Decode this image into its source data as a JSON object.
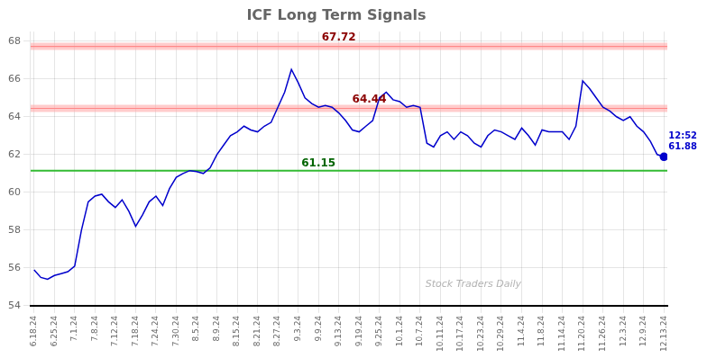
{
  "chart_data": {
    "type": "line",
    "title": "ICF Long Term Signals",
    "categories": [
      "6.18.24",
      null,
      null,
      "6.25.24",
      null,
      null,
      "7.1.24",
      null,
      null,
      "7.8.24",
      null,
      null,
      "7.12.24",
      null,
      null,
      "7.18.24",
      null,
      null,
      "7.24.24",
      null,
      null,
      "7.30.24",
      null,
      null,
      "8.5.24",
      null,
      null,
      "8.9.24",
      null,
      null,
      "8.15.24",
      null,
      null,
      "8.21.24",
      null,
      null,
      "8.27.24",
      null,
      null,
      "9.3.24",
      null,
      null,
      "9.9.24",
      null,
      null,
      "9.13.24",
      null,
      null,
      "9.19.24",
      null,
      null,
      "9.25.24",
      null,
      null,
      "10.1.24",
      null,
      null,
      "10.7.24",
      null,
      null,
      "10.11.24",
      null,
      null,
      "10.17.24",
      null,
      null,
      "10.23.24",
      null,
      null,
      "10.29.24",
      null,
      null,
      "11.4.24",
      null,
      null,
      "11.8.24",
      null,
      null,
      "11.14.24",
      null,
      null,
      "11.20.24",
      null,
      null,
      "11.26.24",
      null,
      null,
      "12.3.24",
      null,
      null,
      "12.9.24",
      null,
      null,
      "12.13.24"
    ],
    "values": [
      55.9,
      55.5,
      55.4,
      55.6,
      55.7,
      55.8,
      56.1,
      58.0,
      59.5,
      59.8,
      59.9,
      59.5,
      59.2,
      59.6,
      59.0,
      58.2,
      58.8,
      59.5,
      59.8,
      59.3,
      60.2,
      60.8,
      61.0,
      61.15,
      61.1,
      61.0,
      61.3,
      62.0,
      62.5,
      63.0,
      63.2,
      63.5,
      63.3,
      63.2,
      63.5,
      63.7,
      64.5,
      65.3,
      66.5,
      65.8,
      65.0,
      64.7,
      64.5,
      64.6,
      64.5,
      64.2,
      63.8,
      63.3,
      63.2,
      63.5,
      63.8,
      65.0,
      65.3,
      64.9,
      64.8,
      64.5,
      64.6,
      64.5,
      62.6,
      62.4,
      63.0,
      63.2,
      62.8,
      63.2,
      63.0,
      62.6,
      62.4,
      63.0,
      63.3,
      63.2,
      63.0,
      62.8,
      63.4,
      63.0,
      62.5,
      63.3,
      63.2,
      63.2,
      63.2,
      62.8,
      63.5,
      65.9,
      65.5,
      65.0,
      64.5,
      64.3,
      64.0,
      63.8,
      64.0,
      63.5,
      63.2,
      62.7,
      62.0,
      61.88
    ],
    "color": "#0000cc",
    "hlines": [
      {
        "value": 67.72,
        "label": "67.72",
        "color": "#ff8888",
        "band_color": "#ffaaaa",
        "label_color": "darkred"
      },
      {
        "value": 64.44,
        "label": "64.44",
        "color": "#ff8888",
        "band_color": "#ffaaaa",
        "label_color": "darkred"
      },
      {
        "value": 61.15,
        "label": "61.15",
        "color": "#33bb33",
        "label_color": "darkgreen"
      }
    ],
    "end_annotation": [
      "12:52",
      "61.88"
    ],
    "watermark": "Stock Traders Daily",
    "ylim": [
      54,
      68.5
    ],
    "yticks": [
      54,
      56,
      58,
      60,
      62,
      64,
      66,
      68
    ],
    "grid": true
  }
}
